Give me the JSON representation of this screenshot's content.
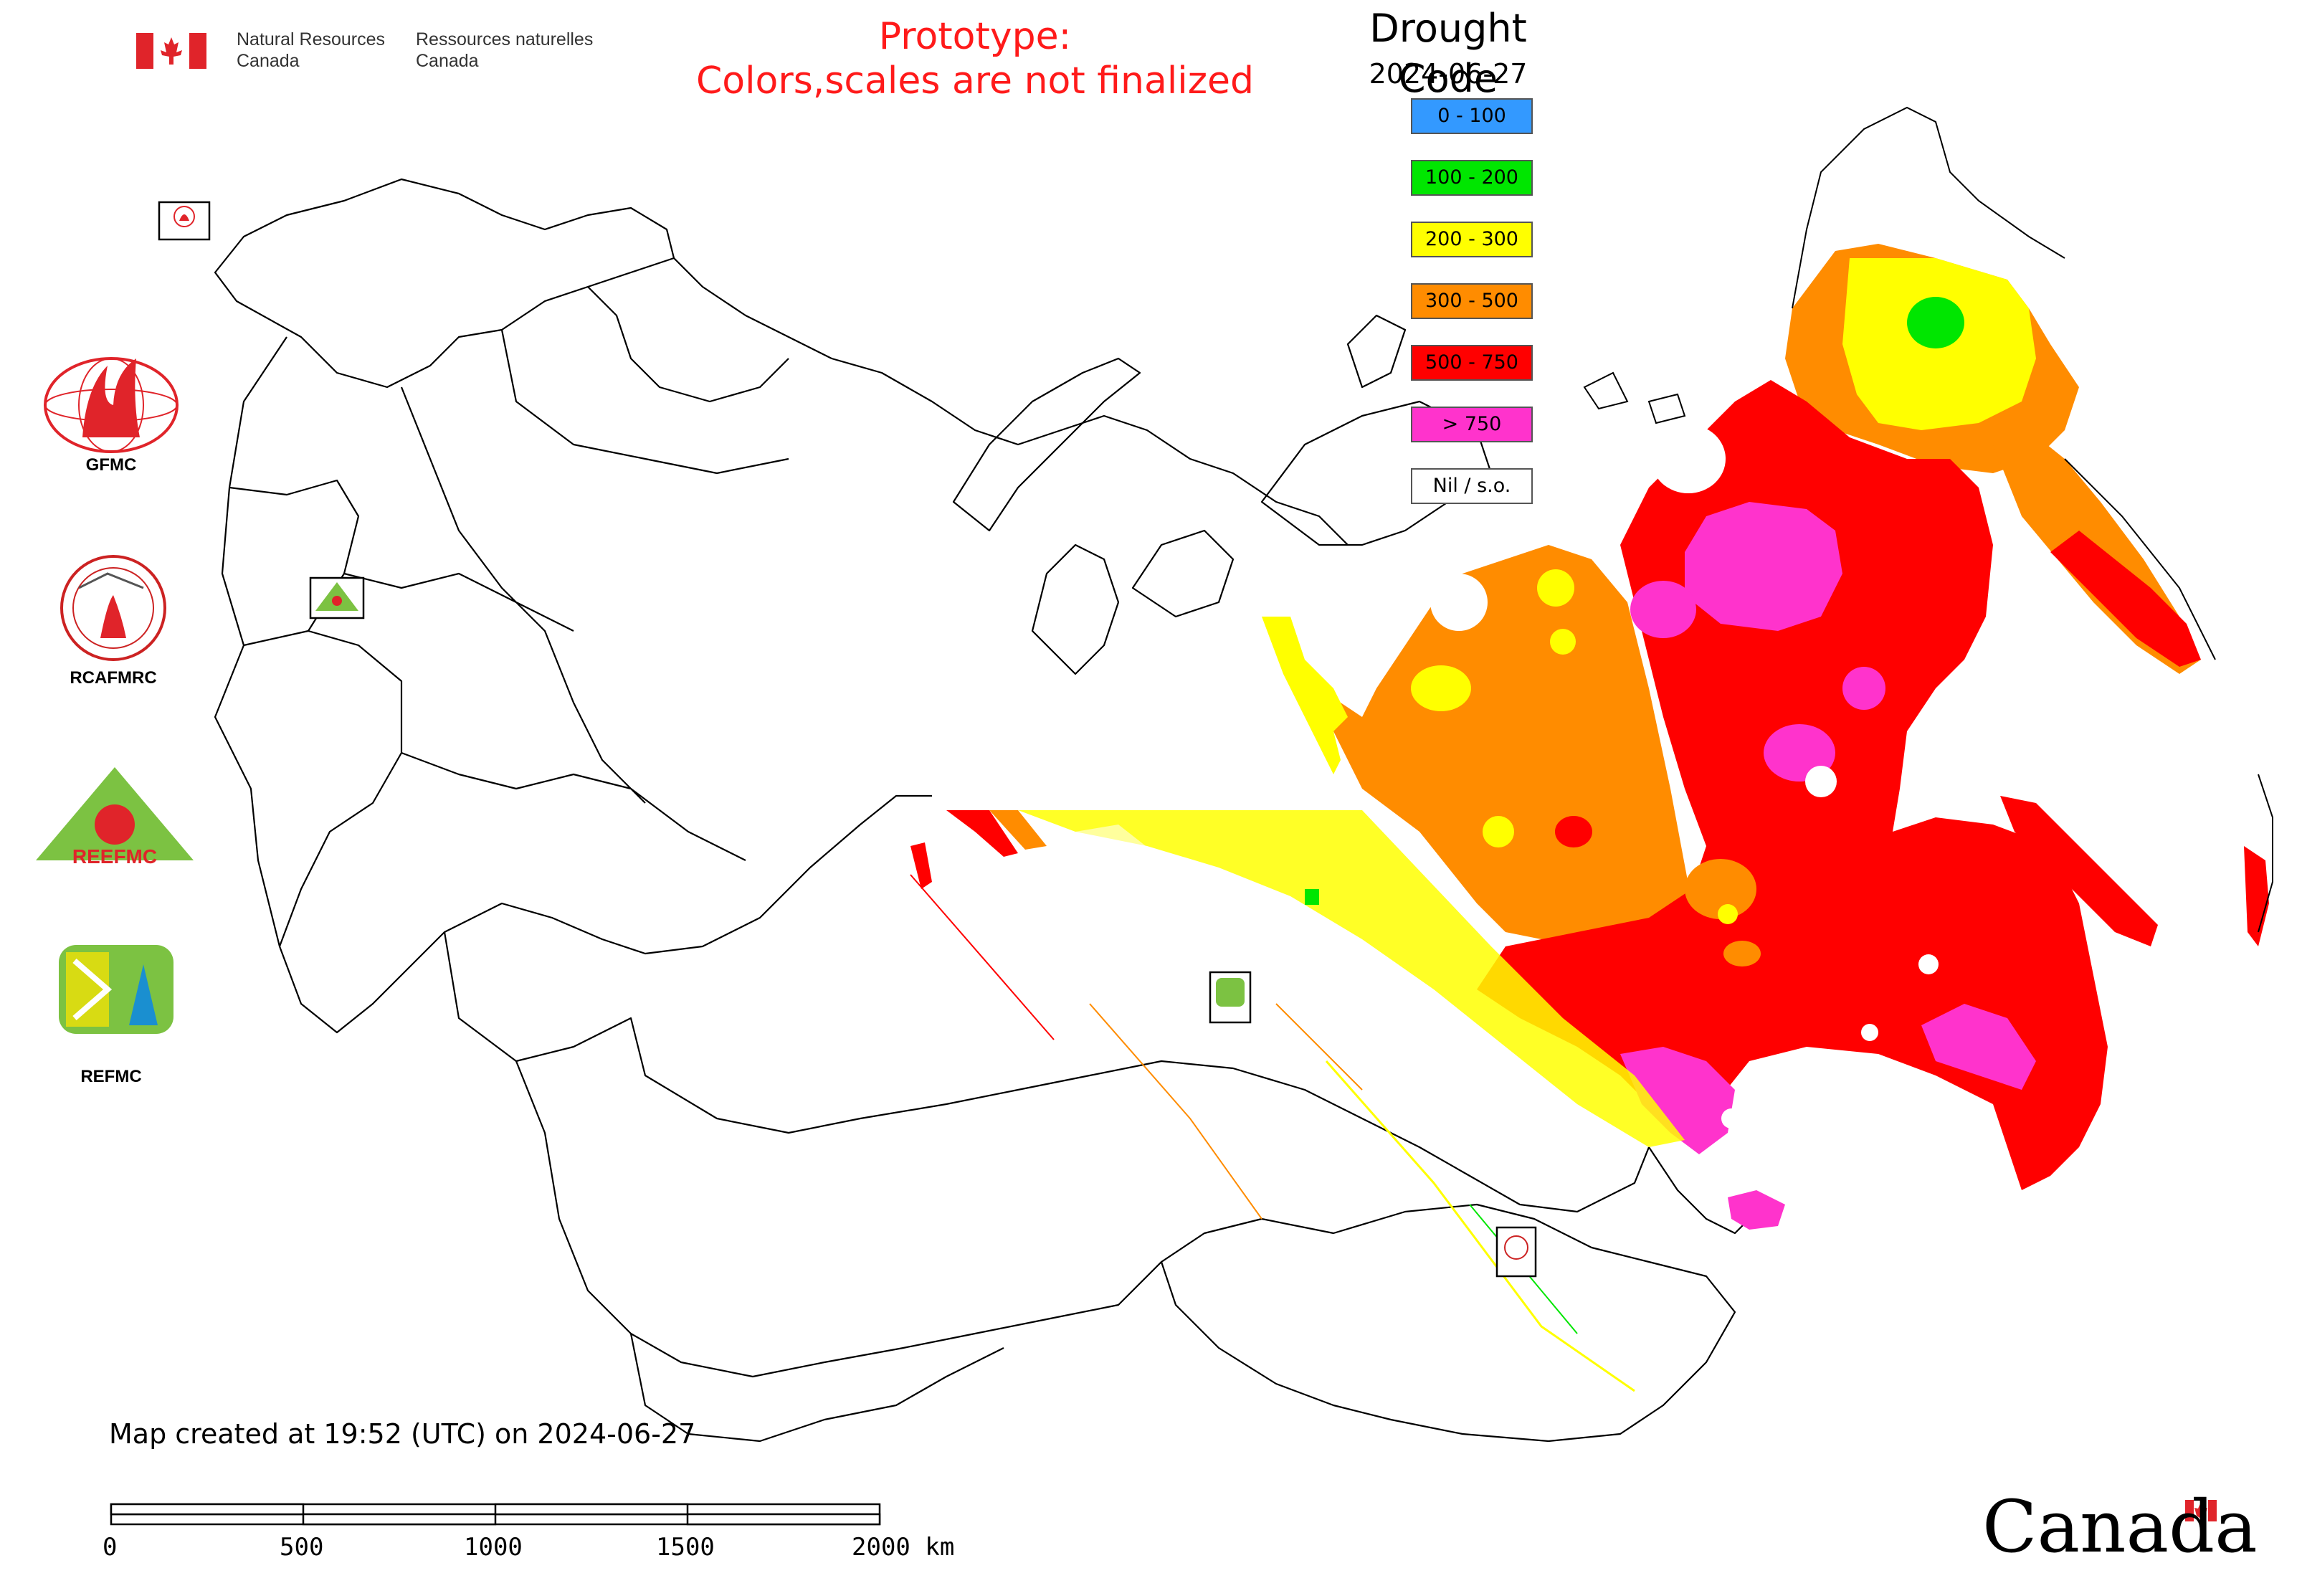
{
  "header": {
    "org_en": "Natural Resources\nCanada",
    "org_fr": "Ressources naturelles\nCanada",
    "flag_icon": "canada-flag-icon"
  },
  "notice": "Prototype:\nColors,scales are not finalized",
  "legend": {
    "title": "Drought Code",
    "date": "2024-06-27",
    "classes": [
      {
        "label": "0 - 100",
        "color": "#3399ff"
      },
      {
        "label": "100 - 200",
        "color": "#00e600"
      },
      {
        "label": "200 - 300",
        "color": "#ffff00"
      },
      {
        "label": "300 - 500",
        "color": "#ff8c00"
      },
      {
        "label": "500 - 750",
        "color": "#ff0000"
      },
      {
        "label": "> 750",
        "color": "#ff33cc"
      },
      {
        "label": "Nil / s.o.",
        "color": "#ffffff"
      }
    ]
  },
  "organizations": {
    "gfmc": "GFMC",
    "rcafmrc": "RCAFMRC",
    "reefmc": "REEFMC",
    "refmc": "REFMC"
  },
  "footer": {
    "created": "Map created at 19:52 (UTC) on 2024-06-27",
    "scale_ticks": [
      "0",
      "500",
      "1000",
      "1500",
      "2000 km"
    ],
    "wordmark": "Canada"
  }
}
